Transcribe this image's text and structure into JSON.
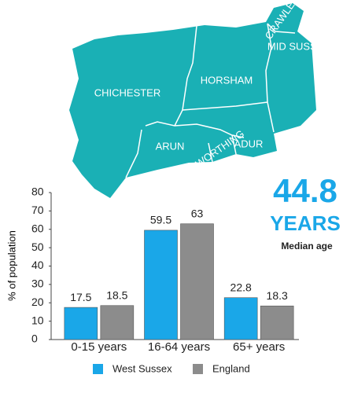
{
  "map": {
    "labels": [
      "CHICHESTER",
      "HORSHAM",
      "MID SUSSEX",
      "CRAWLEY",
      "ARUN",
      "ADUR",
      "WORTHING"
    ]
  },
  "stat": {
    "value": 44.8,
    "unit": "YEARS",
    "caption": "Median age"
  },
  "chart_data": {
    "type": "bar",
    "categories": [
      "0-15 years",
      "16-64 years",
      "65+ years"
    ],
    "series": [
      {
        "name": "West Sussex",
        "color": "#1aa7e8",
        "values": [
          17.5,
          59.5,
          22.8
        ]
      },
      {
        "name": "England",
        "color": "#8c8c8c",
        "values": [
          18.5,
          63,
          18.3
        ]
      }
    ],
    "ylabel": "% of population",
    "ylim": [
      0,
      80
    ],
    "yticks": [
      0,
      10,
      20,
      30,
      40,
      50,
      60,
      70,
      80
    ],
    "grid": false
  }
}
